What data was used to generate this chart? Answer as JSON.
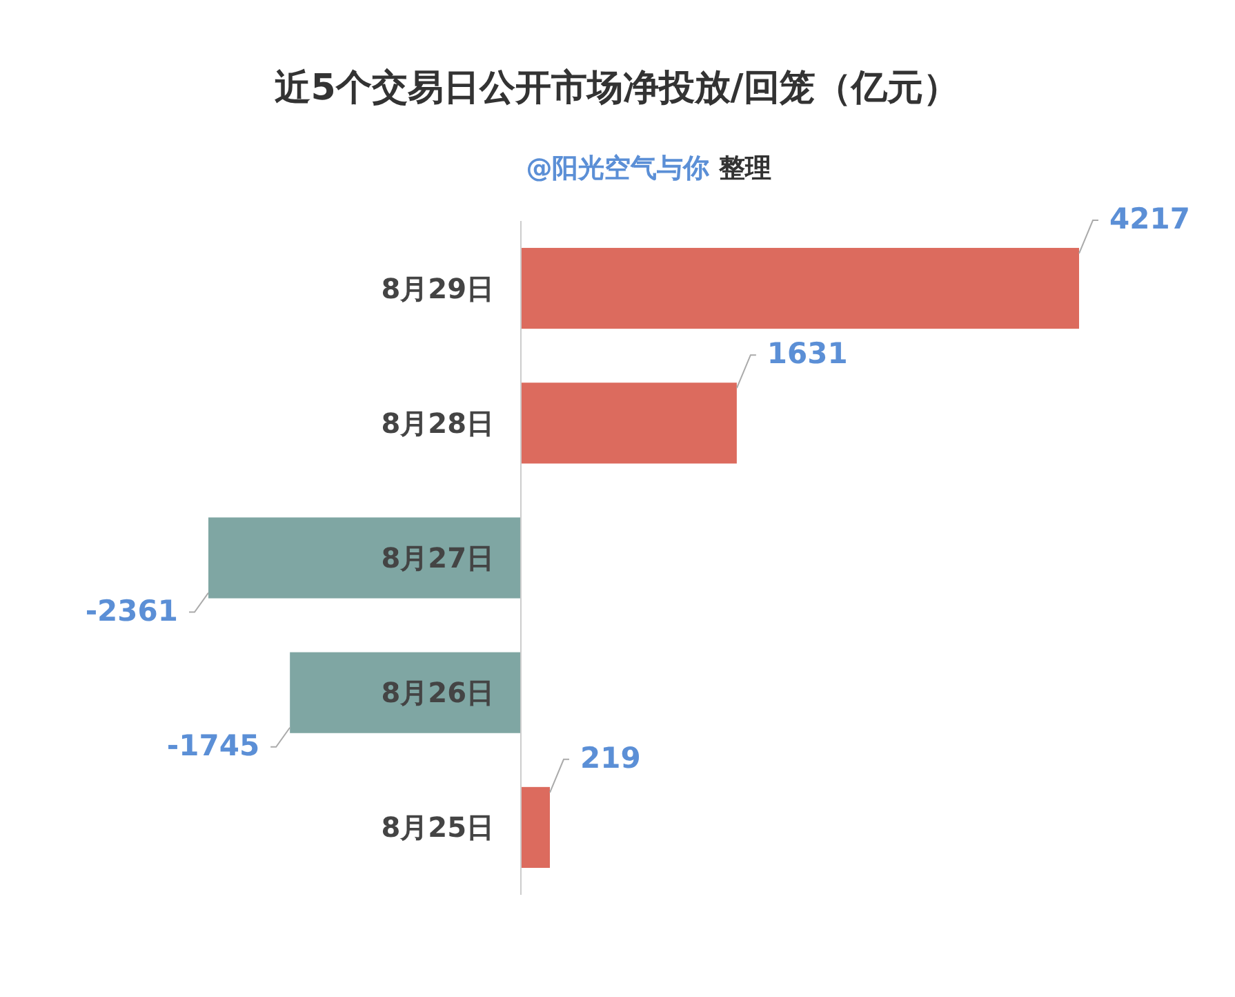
{
  "chart_data": {
    "type": "bar",
    "orientation": "horizontal",
    "title": "近5个交易日公开市场净投放/回笼（亿元）",
    "subtitle": "@阳光空气与你 整理",
    "categories": [
      "8月29日",
      "8月28日",
      "8月27日",
      "8月26日",
      "8月25日"
    ],
    "values": [
      4217,
      1631,
      -2361,
      -1745,
      219
    ],
    "colors": [
      "#dc6b5e",
      "#dc6b5e",
      "#7fa6a3",
      "#7fa6a3",
      "#dc6b5e"
    ],
    "data_labels": true
  }
}
